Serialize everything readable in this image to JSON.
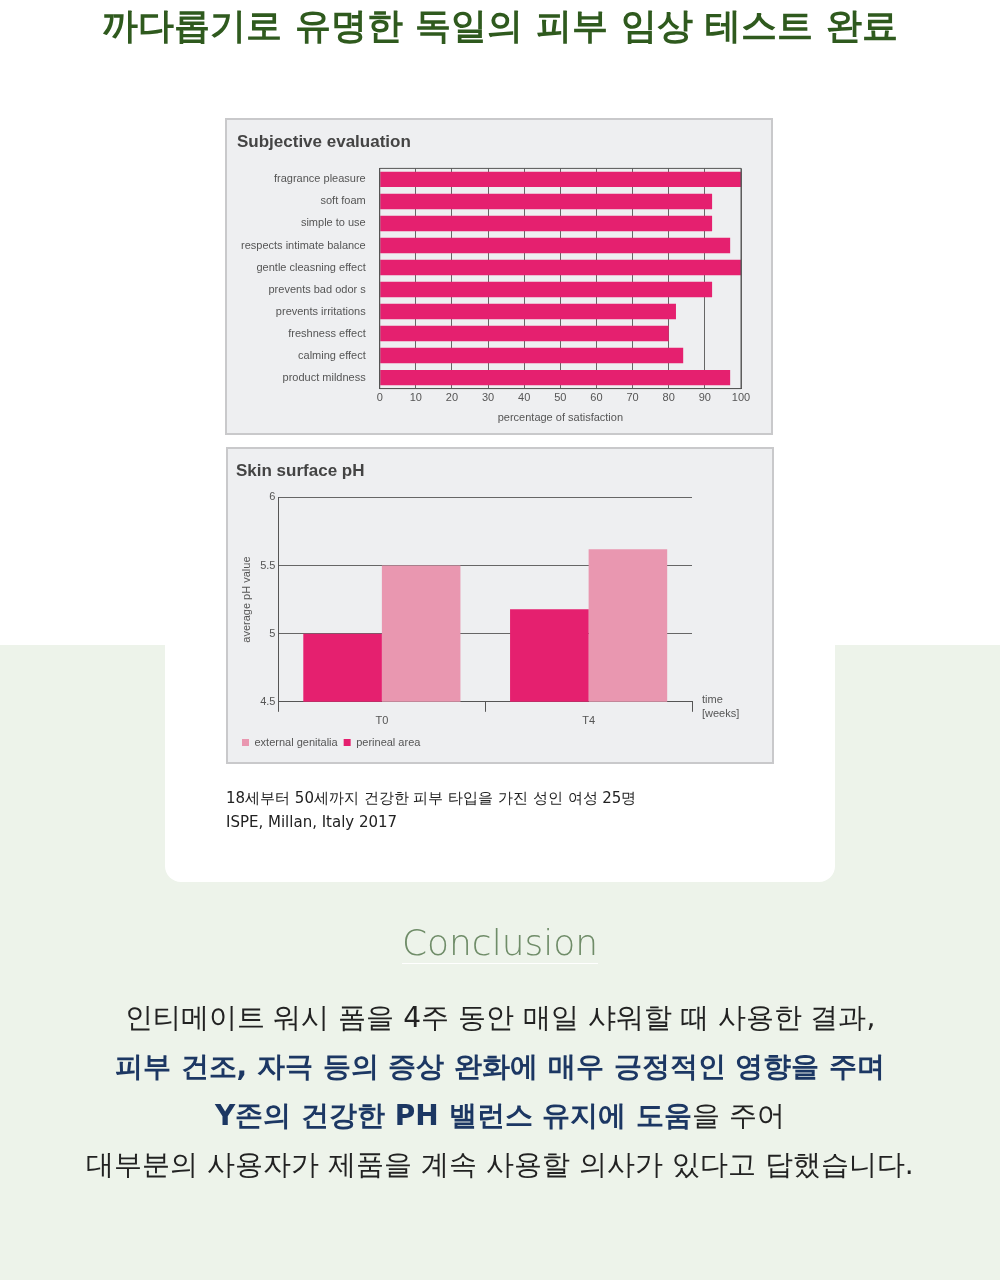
{
  "chart_data": [
    {
      "type": "bar",
      "title": "Subjective evaluation",
      "orientation": "horizontal",
      "xlabel": "percentage of satisfaction",
      "annotations": [
        "까다롭기로 유명한 독일의 피부 임상 테스트 완료"
      ],
      "categories": [
        "fragrance pleasure",
        "soft foam",
        "simple to use",
        "respects intimate balance",
        "gentle cleasning effect",
        "prevents bad odor s",
        "prevents irritations",
        "freshness effect",
        "calming effect",
        "product mildness"
      ],
      "values": [
        100,
        92,
        92,
        97,
        100,
        92,
        82,
        80,
        84,
        97
      ],
      "color": "#e5206f",
      "xlim": [
        0,
        100
      ],
      "xticks": [
        0,
        10,
        20,
        30,
        40,
        50,
        60,
        70,
        80,
        90,
        100
      ],
      "grid": "x"
    },
    {
      "type": "bar",
      "title": "Skin surface pH",
      "xlabel": "time [weeks]",
      "ylabel": "average pH value",
      "annotations": [
        "18세부터 50세까지 건강한 피부 타입을 가진 성인 여성 25명",
        "ISPE, Millan, Italy 2017",
        "Conclusion",
        "인티메이트 워시 폼을 4주 동안 매일 샤워할 때 사용한 결과,",
        "피부 건조, 자극 등의 증상 완화에 매우 긍정적인 영향을 주며",
        "Y존의 건강한 PH 밸런스 유지에 도움",
        "을 주어",
        "대부분의 사용자가 제품을 계속 사용할 의사가 있다고 답했습니다."
      ],
      "categories": [
        "T0",
        "T4"
      ],
      "series": [
        {
          "name": "perineal area",
          "color": "#e5206f",
          "values": [
            5.0,
            5.18
          ]
        },
        {
          "name": "external genitalia",
          "color": "#e997b0",
          "values": [
            5.5,
            5.62
          ]
        }
      ],
      "ylim": [
        4.5,
        6
      ],
      "yticks": [
        4.5,
        5,
        5.5,
        6
      ],
      "grid": "y",
      "legend": "bottom left"
    }
  ]
}
